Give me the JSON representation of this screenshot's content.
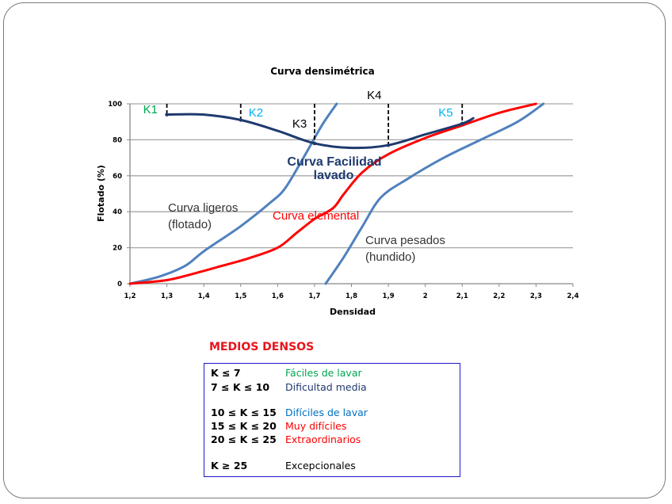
{
  "chart_data": {
    "type": "line",
    "title": "Curva densimétrica",
    "xlabel": "Densidad",
    "ylabel": "Flotado (%)",
    "xlim": [
      1.2,
      2.4
    ],
    "ylim": [
      0,
      100
    ],
    "x_ticks": [
      "1,2",
      "1,3",
      "1,4",
      "1,5",
      "1,6",
      "1,7",
      "1,8",
      "1,9",
      "2",
      "2,1",
      "2,2",
      "2,3",
      "2,4"
    ],
    "y_ticks": [
      "0",
      "20",
      "40",
      "60",
      "80",
      "100"
    ],
    "grid": "horizontal",
    "series": [
      {
        "name": "Curva ligeros (flotado)",
        "color": "#4f81bd",
        "points": [
          [
            1.2,
            0
          ],
          [
            1.28,
            4
          ],
          [
            1.35,
            10
          ],
          [
            1.4,
            18
          ],
          [
            1.5,
            32
          ],
          [
            1.58,
            45
          ],
          [
            1.62,
            53
          ],
          [
            1.67,
            70
          ],
          [
            1.72,
            88
          ],
          [
            1.76,
            100
          ]
        ]
      },
      {
        "name": "Curva elemental",
        "color": "#ff0000",
        "points": [
          [
            1.2,
            0
          ],
          [
            1.3,
            2
          ],
          [
            1.38,
            6
          ],
          [
            1.45,
            10
          ],
          [
            1.52,
            14
          ],
          [
            1.6,
            20
          ],
          [
            1.65,
            28
          ],
          [
            1.7,
            36
          ],
          [
            1.75,
            42
          ],
          [
            1.78,
            50
          ],
          [
            1.83,
            62
          ],
          [
            1.9,
            72
          ],
          [
            2.0,
            81
          ],
          [
            2.1,
            88
          ],
          [
            2.2,
            95
          ],
          [
            2.3,
            100
          ]
        ]
      },
      {
        "name": "Curva pesados (hundido)",
        "color": "#4f81bd",
        "points": [
          [
            1.73,
            0
          ],
          [
            1.78,
            15
          ],
          [
            1.83,
            32
          ],
          [
            1.88,
            48
          ],
          [
            1.95,
            58
          ],
          [
            2.05,
            70
          ],
          [
            2.15,
            80
          ],
          [
            2.25,
            90
          ],
          [
            2.32,
            100
          ]
        ]
      },
      {
        "name": "Curva Facilidad lavado",
        "color": "#1f3a6e",
        "points": [
          [
            1.3,
            94
          ],
          [
            1.4,
            94
          ],
          [
            1.5,
            91
          ],
          [
            1.6,
            85
          ],
          [
            1.7,
            78
          ],
          [
            1.8,
            75.5
          ],
          [
            1.9,
            77
          ],
          [
            2.0,
            83
          ],
          [
            2.1,
            89
          ],
          [
            2.13,
            92
          ]
        ]
      }
    ],
    "k_markers": [
      {
        "label": "K1",
        "x": 1.3,
        "y": 94,
        "color": "#00a550"
      },
      {
        "label": "K2",
        "x": 1.5,
        "y": 91,
        "color": "#00b0f0"
      },
      {
        "label": "K3",
        "x": 1.7,
        "y": 78,
        "color": "#000000"
      },
      {
        "label": "K4",
        "x": 1.9,
        "y": 77,
        "color": "#000000"
      },
      {
        "label": "K5",
        "x": 2.1,
        "y": 89,
        "color": "#00b0f0"
      }
    ],
    "annotations": {
      "lavado_line1": "Curva Facilidad",
      "lavado_line2": "lavado",
      "ligeros_line1": "Curva ligeros",
      "ligeros_line2": "(flotado)",
      "elemental": "Curva elemental",
      "pesados_line1": "Curva pesados",
      "pesados_line2": "(hundido)"
    }
  },
  "legend": {
    "title": "MEDIOS DENSOS",
    "rows": [
      {
        "k": "K ≤ 7",
        "desc": "Fáciles de lavar",
        "color": "#00a550"
      },
      {
        "k": "7 ≤ K ≤ 10",
        "desc": "Dificultad media",
        "color": "#1f3a6e"
      },
      {
        "k": "10 ≤ K ≤ 15",
        "desc": "Difíciles de lavar",
        "color": "#0070c0"
      },
      {
        "k": "15 ≤ K ≤ 20",
        "desc": "Muy difíciles",
        "color": "#ff0000"
      },
      {
        "k": "20 ≤ K ≤ 25",
        "desc": "Extraordinarios",
        "color": "#ff0000"
      },
      {
        "k": "K ≥ 25",
        "desc": "Excepcionales",
        "color": "#000000"
      }
    ]
  }
}
